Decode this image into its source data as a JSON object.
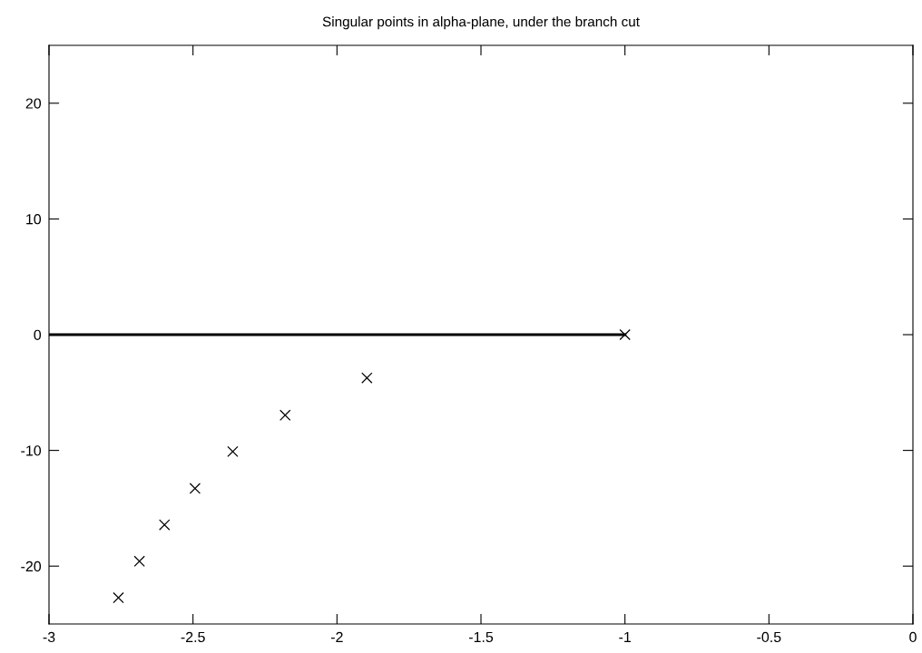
{
  "chart_data": {
    "type": "scatter",
    "title": "Singular points in alpha-plane, under the branch cut",
    "series": [
      {
        "type": "line",
        "color": "#000000",
        "x": [
          -3,
          -1
        ],
        "values": [
          0,
          0
        ]
      },
      {
        "color": "#000000",
        "marker": "cross",
        "x": [
          -1,
          -1.896,
          -2.18,
          -2.362,
          -2.493,
          -2.599,
          -2.686,
          -2.759
        ],
        "values": [
          0,
          -3.74,
          -6.96,
          -10.1,
          -13.29,
          -16.43,
          -19.58,
          -22.73
        ]
      }
    ],
    "xlim": [
      -3,
      0
    ],
    "xticks": [
      -3,
      -2.5,
      -2,
      -1.5,
      -1,
      -0.5,
      0
    ],
    "ylim": [
      -25,
      25
    ],
    "yticks": [
      -20,
      -10,
      0,
      10,
      20
    ],
    "grid": false,
    "legend": false
  }
}
